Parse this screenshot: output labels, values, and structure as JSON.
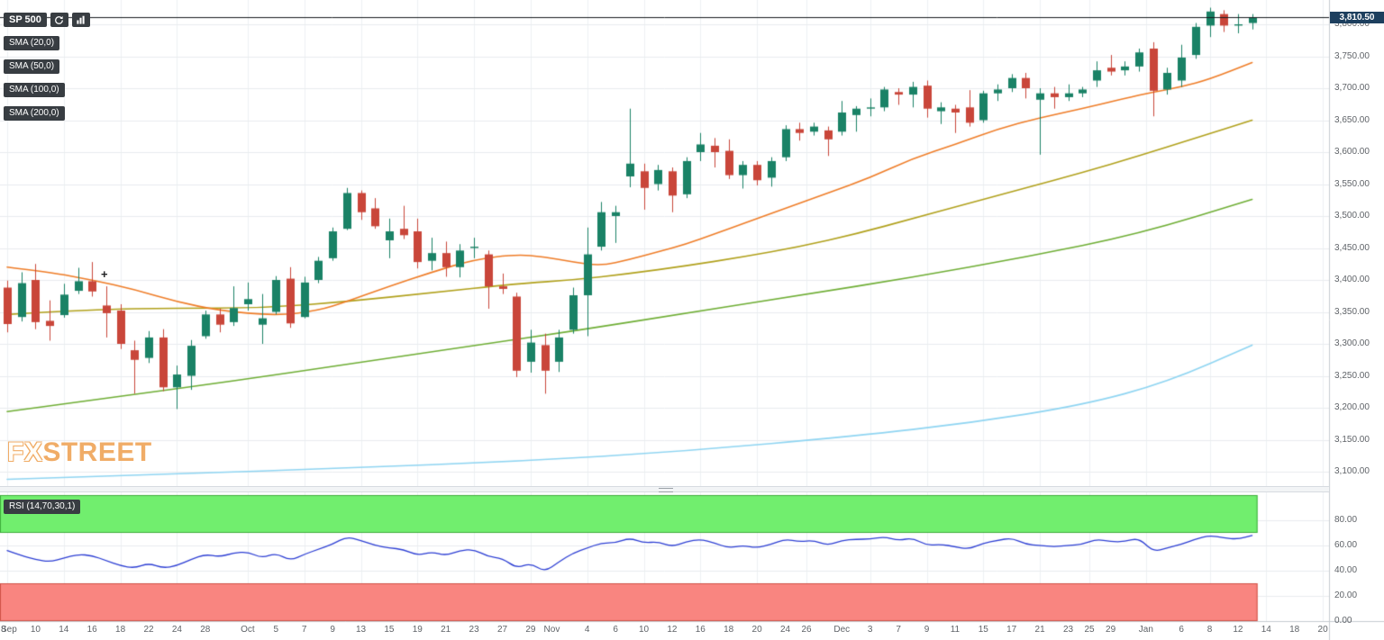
{
  "toolbar": {
    "symbol": "SP 500"
  },
  "indicators": {
    "sma_badges": [
      "SMA (20,0)",
      "SMA (50,0)",
      "SMA (100,0)",
      "SMA (200,0)"
    ],
    "rsi_badge": "RSI (14,70,30,1)"
  },
  "watermark": {
    "fx": "FX",
    "street": "STREET"
  },
  "marker": {
    "glyph": "+"
  },
  "colors": {
    "bull": "#1a8266",
    "bear": "#c9463a",
    "rsi_line": "#2d3fd4",
    "overbought_fill": "#71ee6e",
    "overbought_edge": "#3fae3c",
    "oversold_fill": "#f98580",
    "oversold_edge": "#d05247",
    "price_line": "#15181c",
    "badge_bg": "#383d42",
    "price_badge_bg": "#1d3f5e",
    "watermark_accent": "#f0a85f",
    "grid": "#e9ecef",
    "grid_vertical": "#eef1f3",
    "axis_border": "#c6cbd1",
    "axis_text": "#5f6368"
  },
  "chart_data": {
    "type": "candlestick",
    "symbol": "SP 500",
    "last_price": 3810.5,
    "last_price_label": "3,810.50",
    "y_axis": {
      "min": 3100,
      "max": 3800,
      "step": 50,
      "tick_labels": [
        "3,800.00",
        "3,750.00",
        "3,700.00",
        "3,650.00",
        "3,600.00",
        "3,550.00",
        "3,500.00",
        "3,450.00",
        "3,400.00",
        "3,350.00",
        "3,300.00",
        "3,250.00",
        "3,200.00",
        "3,150.00",
        "3,100.00"
      ]
    },
    "x_ticks": [
      {
        "label": "Sep",
        "i": -1
      },
      {
        "label": "8",
        "i": 0
      },
      {
        "label": "10",
        "i": 2
      },
      {
        "label": "14",
        "i": 4
      },
      {
        "label": "16",
        "i": 6
      },
      {
        "label": "18",
        "i": 8
      },
      {
        "label": "22",
        "i": 10
      },
      {
        "label": "24",
        "i": 12
      },
      {
        "label": "28",
        "i": 14
      },
      {
        "label": "Oct",
        "i": 17
      },
      {
        "label": "5",
        "i": 19
      },
      {
        "label": "7",
        "i": 21
      },
      {
        "label": "9",
        "i": 23
      },
      {
        "label": "13",
        "i": 25
      },
      {
        "label": "15",
        "i": 27
      },
      {
        "label": "19",
        "i": 29
      },
      {
        "label": "21",
        "i": 31
      },
      {
        "label": "23",
        "i": 33
      },
      {
        "label": "27",
        "i": 35
      },
      {
        "label": "29",
        "i": 37
      },
      {
        "label": "Nov",
        "i": 38.5
      },
      {
        "label": "4",
        "i": 41
      },
      {
        "label": "6",
        "i": 43
      },
      {
        "label": "10",
        "i": 45
      },
      {
        "label": "12",
        "i": 47
      },
      {
        "label": "16",
        "i": 49
      },
      {
        "label": "18",
        "i": 51
      },
      {
        "label": "20",
        "i": 53
      },
      {
        "label": "24",
        "i": 55
      },
      {
        "label": "26",
        "i": 56.5
      },
      {
        "label": "Dec",
        "i": 59
      },
      {
        "label": "3",
        "i": 61
      },
      {
        "label": "7",
        "i": 63
      },
      {
        "label": "9",
        "i": 65
      },
      {
        "label": "11",
        "i": 67
      },
      {
        "label": "15",
        "i": 69
      },
      {
        "label": "17",
        "i": 71
      },
      {
        "label": "21",
        "i": 73
      },
      {
        "label": "23",
        "i": 75
      },
      {
        "label": "25",
        "i": 76.5
      },
      {
        "label": "29",
        "i": 78
      },
      {
        "label": "Jan",
        "i": 80.5
      },
      {
        "label": "6",
        "i": 83
      },
      {
        "label": "8",
        "i": 85
      },
      {
        "label": "12",
        "i": 87
      },
      {
        "label": "14",
        "i": 89
      },
      {
        "label": "18",
        "i": 91
      },
      {
        "label": "20",
        "i": 93
      }
    ],
    "candles": [
      [
        3388,
        3399,
        3318,
        3331
      ],
      [
        3342,
        3412,
        3335,
        3395
      ],
      [
        3400,
        3425,
        3323,
        3334
      ],
      [
        3336,
        3368,
        3305,
        3328
      ],
      [
        3345,
        3394,
        3341,
        3377
      ],
      [
        3383,
        3419,
        3378,
        3398
      ],
      [
        3398,
        3428,
        3374,
        3382
      ],
      [
        3360,
        3390,
        3310,
        3348
      ],
      [
        3352,
        3362,
        3292,
        3300
      ],
      [
        3290,
        3305,
        3222,
        3275
      ],
      [
        3278,
        3320,
        3270,
        3310
      ],
      [
        3310,
        3323,
        3226,
        3232
      ],
      [
        3232,
        3266,
        3198,
        3252
      ],
      [
        3250,
        3306,
        3228,
        3297
      ],
      [
        3312,
        3352,
        3308,
        3346
      ],
      [
        3346,
        3355,
        3318,
        3330
      ],
      [
        3334,
        3390,
        3328,
        3356
      ],
      [
        3362,
        3396,
        3352,
        3370
      ],
      [
        3330,
        3378,
        3300,
        3340
      ],
      [
        3350,
        3406,
        3346,
        3400
      ],
      [
        3402,
        3420,
        3325,
        3332
      ],
      [
        3342,
        3405,
        3340,
        3396
      ],
      [
        3400,
        3436,
        3395,
        3430
      ],
      [
        3434,
        3482,
        3430,
        3476
      ],
      [
        3480,
        3544,
        3478,
        3536
      ],
      [
        3536,
        3540,
        3494,
        3506
      ],
      [
        3512,
        3528,
        3480,
        3484
      ],
      [
        3462,
        3496,
        3434,
        3476
      ],
      [
        3480,
        3516,
        3464,
        3470
      ],
      [
        3476,
        3496,
        3418,
        3428
      ],
      [
        3430,
        3466,
        3415,
        3442
      ],
      [
        3442,
        3460,
        3405,
        3420
      ],
      [
        3420,
        3456,
        3404,
        3446
      ],
      [
        3450,
        3466,
        3434,
        3452
      ],
      [
        3440,
        3446,
        3355,
        3390
      ],
      [
        3390,
        3410,
        3378,
        3386
      ],
      [
        3374,
        3380,
        3248,
        3258
      ],
      [
        3272,
        3322,
        3255,
        3302
      ],
      [
        3298,
        3316,
        3222,
        3258
      ],
      [
        3272,
        3322,
        3256,
        3310
      ],
      [
        3322,
        3388,
        3316,
        3376
      ],
      [
        3376,
        3482,
        3312,
        3440
      ],
      [
        3452,
        3522,
        3446,
        3506
      ],
      [
        3500,
        3516,
        3458,
        3506
      ],
      [
        3562,
        3668,
        3545,
        3582
      ],
      [
        3570,
        3582,
        3510,
        3544
      ],
      [
        3550,
        3580,
        3540,
        3572
      ],
      [
        3570,
        3576,
        3506,
        3532
      ],
      [
        3534,
        3592,
        3528,
        3586
      ],
      [
        3600,
        3630,
        3586,
        3612
      ],
      [
        3610,
        3622,
        3576,
        3600
      ],
      [
        3602,
        3620,
        3558,
        3564
      ],
      [
        3564,
        3586,
        3543,
        3580
      ],
      [
        3580,
        3586,
        3548,
        3556
      ],
      [
        3560,
        3592,
        3546,
        3586
      ],
      [
        3592,
        3642,
        3586,
        3636
      ],
      [
        3636,
        3646,
        3618,
        3630
      ],
      [
        3632,
        3646,
        3626,
        3640
      ],
      [
        3634,
        3640,
        3594,
        3620
      ],
      [
        3632,
        3680,
        3626,
        3662
      ],
      [
        3658,
        3672,
        3632,
        3668
      ],
      [
        3668,
        3684,
        3656,
        3670
      ],
      [
        3670,
        3702,
        3664,
        3698
      ],
      [
        3694,
        3700,
        3674,
        3690
      ],
      [
        3690,
        3710,
        3670,
        3702
      ],
      [
        3704,
        3712,
        3654,
        3668
      ],
      [
        3664,
        3678,
        3644,
        3670
      ],
      [
        3668,
        3674,
        3630,
        3662
      ],
      [
        3670,
        3697,
        3640,
        3646
      ],
      [
        3650,
        3696,
        3646,
        3692
      ],
      [
        3692,
        3706,
        3680,
        3698
      ],
      [
        3700,
        3722,
        3694,
        3716
      ],
      [
        3716,
        3724,
        3684,
        3700
      ],
      [
        3682,
        3700,
        3596,
        3692
      ],
      [
        3692,
        3702,
        3668,
        3686
      ],
      [
        3686,
        3706,
        3680,
        3692
      ],
      [
        3692,
        3702,
        3686,
        3698
      ],
      [
        3712,
        3742,
        3702,
        3728
      ],
      [
        3732,
        3752,
        3720,
        3726
      ],
      [
        3728,
        3742,
        3720,
        3734
      ],
      [
        3734,
        3762,
        3726,
        3756
      ],
      [
        3762,
        3772,
        3656,
        3696
      ],
      [
        3698,
        3732,
        3690,
        3724
      ],
      [
        3712,
        3768,
        3702,
        3748
      ],
      [
        3752,
        3802,
        3746,
        3796
      ],
      [
        3798,
        3826,
        3780,
        3820
      ],
      [
        3816,
        3822,
        3788,
        3798
      ],
      [
        3798,
        3816,
        3786,
        3800
      ],
      [
        3802,
        3816,
        3792,
        3810.5
      ]
    ],
    "overlays": [
      {
        "name": "SMA (20,0)",
        "period": 20,
        "color": "#ef7d28",
        "points": [
          [
            0,
            3420
          ],
          [
            3,
            3412
          ],
          [
            6,
            3400
          ],
          [
            9,
            3385
          ],
          [
            12,
            3366
          ],
          [
            15,
            3352
          ],
          [
            19,
            3344
          ],
          [
            22,
            3352
          ],
          [
            24,
            3366
          ],
          [
            27,
            3390
          ],
          [
            30,
            3412
          ],
          [
            33,
            3432
          ],
          [
            36,
            3440
          ],
          [
            38,
            3436
          ],
          [
            40,
            3428
          ],
          [
            42,
            3422
          ],
          [
            44,
            3432
          ],
          [
            46,
            3444
          ],
          [
            48,
            3456
          ],
          [
            50,
            3472
          ],
          [
            52,
            3488
          ],
          [
            55,
            3512
          ],
          [
            58,
            3536
          ],
          [
            61,
            3560
          ],
          [
            64,
            3590
          ],
          [
            67,
            3612
          ],
          [
            70,
            3636
          ],
          [
            73,
            3654
          ],
          [
            76,
            3668
          ],
          [
            79,
            3684
          ],
          [
            81,
            3694
          ],
          [
            83,
            3702
          ],
          [
            85,
            3714
          ],
          [
            88,
            3740
          ]
        ]
      },
      {
        "name": "SMA (50,0)",
        "period": 50,
        "color": "#b1a11c",
        "points": [
          [
            0,
            3346
          ],
          [
            6,
            3354
          ],
          [
            12,
            3356
          ],
          [
            18,
            3356
          ],
          [
            24,
            3366
          ],
          [
            30,
            3380
          ],
          [
            36,
            3394
          ],
          [
            40,
            3400
          ],
          [
            44,
            3410
          ],
          [
            48,
            3422
          ],
          [
            52,
            3436
          ],
          [
            56,
            3452
          ],
          [
            60,
            3472
          ],
          [
            64,
            3496
          ],
          [
            68,
            3520
          ],
          [
            72,
            3544
          ],
          [
            76,
            3568
          ],
          [
            80,
            3594
          ],
          [
            84,
            3622
          ],
          [
            88,
            3650
          ]
        ]
      },
      {
        "name": "SMA (100,0)",
        "period": 100,
        "color": "#6fae35",
        "points": [
          [
            0,
            3194
          ],
          [
            8,
            3218
          ],
          [
            16,
            3242
          ],
          [
            24,
            3268
          ],
          [
            32,
            3294
          ],
          [
            40,
            3320
          ],
          [
            48,
            3348
          ],
          [
            56,
            3376
          ],
          [
            64,
            3404
          ],
          [
            72,
            3436
          ],
          [
            80,
            3472
          ],
          [
            88,
            3526
          ]
        ]
      },
      {
        "name": "SMA (200,0)",
        "period": 200,
        "color": "#8fd5f2",
        "points": [
          [
            0,
            3088
          ],
          [
            12,
            3096
          ],
          [
            24,
            3106
          ],
          [
            36,
            3116
          ],
          [
            48,
            3132
          ],
          [
            60,
            3156
          ],
          [
            68,
            3176
          ],
          [
            76,
            3204
          ],
          [
            82,
            3240
          ],
          [
            88,
            3298
          ]
        ]
      }
    ],
    "rsi": {
      "type": "line",
      "name": "RSI (14,70,30,1)",
      "range": [
        0,
        100
      ],
      "overbought": 70,
      "oversold": 30,
      "tick_labels": [
        "80.00",
        "60.00",
        "40.00",
        "20.00",
        "0.00"
      ],
      "values": [
        56,
        52,
        49,
        47,
        50,
        53,
        52,
        48,
        44,
        42,
        46,
        42,
        44,
        49,
        53,
        51,
        54,
        55,
        50,
        54,
        48,
        53,
        57,
        61,
        67,
        64,
        60,
        58,
        57,
        52,
        55,
        52,
        56,
        57,
        51,
        50,
        42,
        46,
        39,
        47,
        54,
        58,
        62,
        62,
        66,
        62,
        63,
        59,
        63,
        65,
        62,
        58,
        60,
        58,
        61,
        65,
        63,
        64,
        60,
        64,
        65,
        65,
        67,
        64,
        66,
        60,
        61,
        59,
        57,
        62,
        64,
        66,
        61,
        60,
        59,
        60,
        61,
        65,
        63,
        63,
        66,
        55,
        58,
        61,
        65,
        68,
        66,
        65,
        68
      ]
    }
  }
}
